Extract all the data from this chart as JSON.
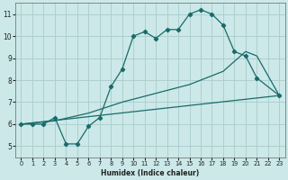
{
  "xlabel": "Humidex (Indice chaleur)",
  "ylabel": "",
  "bg_color": "#cce8e8",
  "grid_color": "#aacccc",
  "line_color": "#1a6b6b",
  "xlim": [
    -0.5,
    23.5
  ],
  "ylim": [
    4.5,
    11.5
  ],
  "xticks": [
    0,
    1,
    2,
    3,
    4,
    5,
    6,
    7,
    8,
    9,
    10,
    11,
    12,
    13,
    14,
    15,
    16,
    17,
    18,
    19,
    20,
    21,
    22,
    23
  ],
  "yticks": [
    5,
    6,
    7,
    8,
    9,
    10,
    11
  ],
  "line1_x": [
    0,
    1,
    2,
    3,
    4,
    5,
    6,
    7,
    8,
    9,
    10,
    11,
    12,
    13,
    14,
    15,
    16,
    17,
    18,
    19,
    20,
    21,
    23
  ],
  "line1_y": [
    6.0,
    6.0,
    6.0,
    6.3,
    5.1,
    5.1,
    5.9,
    6.3,
    7.7,
    8.5,
    10.0,
    10.2,
    9.9,
    10.3,
    10.3,
    11.0,
    11.2,
    11.0,
    10.5,
    9.3,
    9.1,
    8.1,
    7.3
  ],
  "line2_x": [
    0,
    23
  ],
  "line2_y": [
    6.0,
    7.3
  ],
  "line3_x": [
    0,
    3,
    6,
    9,
    12,
    15,
    18,
    20,
    21,
    23
  ],
  "line3_y": [
    6.0,
    6.15,
    6.5,
    7.0,
    7.4,
    7.8,
    8.4,
    9.3,
    9.1,
    7.3
  ]
}
